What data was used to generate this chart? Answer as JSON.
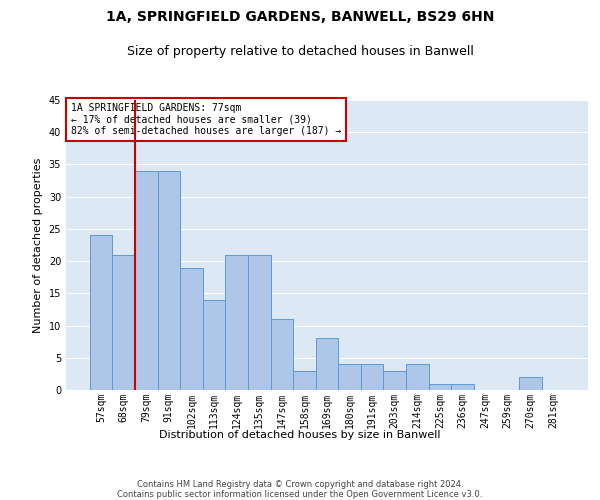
{
  "title": "1A, SPRINGFIELD GARDENS, BANWELL, BS29 6HN",
  "subtitle": "Size of property relative to detached houses in Banwell",
  "xlabel": "Distribution of detached houses by size in Banwell",
  "ylabel": "Number of detached properties",
  "categories": [
    "57sqm",
    "68sqm",
    "79sqm",
    "91sqm",
    "102sqm",
    "113sqm",
    "124sqm",
    "135sqm",
    "147sqm",
    "158sqm",
    "169sqm",
    "180sqm",
    "191sqm",
    "203sqm",
    "214sqm",
    "225sqm",
    "236sqm",
    "247sqm",
    "259sqm",
    "270sqm",
    "281sqm"
  ],
  "values": [
    24,
    21,
    34,
    34,
    19,
    14,
    21,
    21,
    11,
    3,
    8,
    4,
    4,
    3,
    4,
    1,
    1,
    0,
    0,
    2,
    0
  ],
  "bar_color": "#aec6e8",
  "bar_edgecolor": "#5b9bd5",
  "vline_x": 1.5,
  "vline_color": "#cc0000",
  "annotation_text": "1A SPRINGFIELD GARDENS: 77sqm\n← 17% of detached houses are smaller (39)\n82% of semi-detached houses are larger (187) →",
  "annotation_box_color": "#ffffff",
  "annotation_box_edgecolor": "#cc0000",
  "ylim": [
    0,
    45
  ],
  "yticks": [
    0,
    5,
    10,
    15,
    20,
    25,
    30,
    35,
    40,
    45
  ],
  "footer_text": "Contains HM Land Registry data © Crown copyright and database right 2024.\nContains public sector information licensed under the Open Government Licence v3.0.",
  "bg_color": "#ffffff",
  "plot_bg_color": "#dde8f5",
  "grid_color": "#ffffff",
  "title_fontsize": 10,
  "subtitle_fontsize": 9,
  "tick_fontsize": 7,
  "ylabel_fontsize": 8,
  "xlabel_fontsize": 8,
  "annotation_fontsize": 7,
  "footer_fontsize": 6
}
